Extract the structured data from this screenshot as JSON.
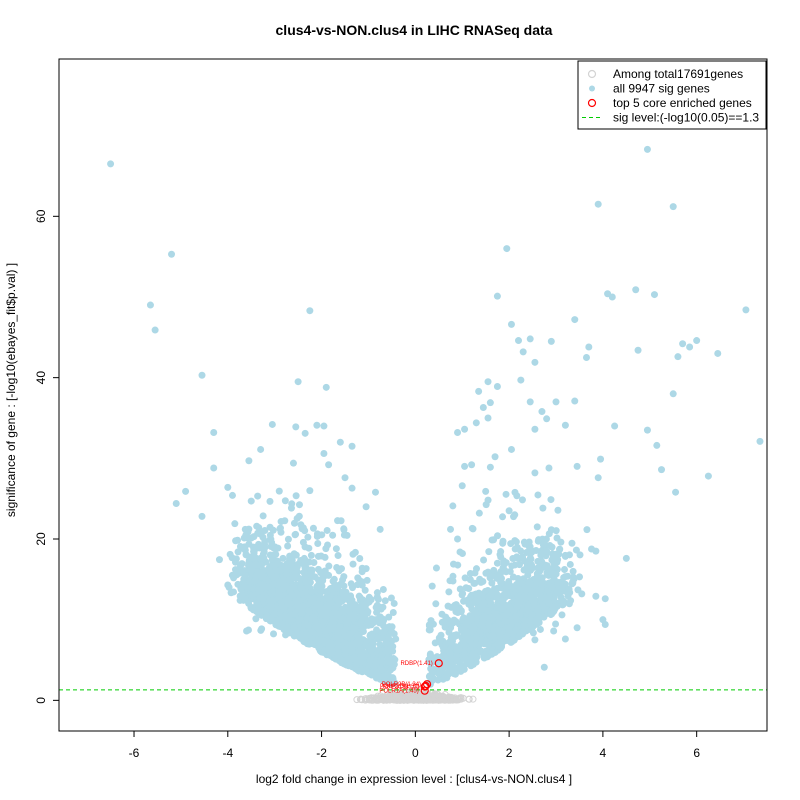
{
  "chart_data": {
    "type": "scatter",
    "title": "clus4-vs-NON.clus4 in LIHC RNASeq data",
    "xlabel": "log2 fold change in expression level : [clus4-vs-NON.clus4 ]",
    "ylabel": "significance of gene : [-log10(ebayes_fit$p.val) ]",
    "xlim": [
      -7.6,
      7.5
    ],
    "ylim": [
      -3.8,
      79.5
    ],
    "x_ticks": [
      -6,
      -4,
      -2,
      0,
      2,
      4,
      6
    ],
    "y_ticks": [
      0,
      20,
      40,
      60
    ],
    "grid": false,
    "legend_position": "top-right",
    "legend": [
      {
        "label": "Among total17691genes",
        "marker": "open-circle",
        "color": "#d3d3d3"
      },
      {
        "label": "all 9947 sig genes",
        "marker": "filled-circle",
        "color": "#add8e6"
      },
      {
        "label": "top 5 core enriched genes",
        "marker": "open-circle",
        "color": "#ff0000"
      },
      {
        "label": "sig level:(-log10(0.05)==1.3",
        "marker": "dashed-line",
        "color": "#00cc00"
      }
    ],
    "sig_level": 1.3,
    "series": [
      {
        "name": "all 9947 sig genes",
        "color": "#add8e6",
        "points": [
          [
            -6.5,
            66.5
          ],
          [
            -5.2,
            55.3
          ],
          [
            -5.65,
            49.0
          ],
          [
            -5.55,
            45.9
          ],
          [
            -2.25,
            48.3
          ],
          [
            -4.55,
            40.3
          ],
          [
            -2.5,
            39.5
          ],
          [
            -1.9,
            38.8
          ],
          [
            -4.3,
            33.2
          ],
          [
            -4.3,
            28.8
          ],
          [
            -4.0,
            26.4
          ],
          [
            -4.9,
            25.9
          ],
          [
            -5.1,
            24.4
          ],
          [
            -4.55,
            22.8
          ],
          [
            -3.05,
            34.2
          ],
          [
            -2.55,
            33.9
          ],
          [
            -2.35,
            33.1
          ],
          [
            -2.1,
            34.1
          ],
          [
            -1.95,
            34.0
          ],
          [
            -1.6,
            32.0
          ],
          [
            -1.35,
            31.5
          ],
          [
            -3.3,
            31.1
          ],
          [
            -3.55,
            29.7
          ],
          [
            -2.6,
            29.4
          ],
          [
            -1.85,
            29.2
          ],
          [
            -1.5,
            27.6
          ],
          [
            -0.85,
            25.8
          ],
          [
            -3.9,
            25.4
          ],
          [
            -3.5,
            24.7
          ],
          [
            -3.85,
            21.9
          ],
          [
            -3.95,
            18.1
          ],
          [
            -4.0,
            14.3
          ],
          [
            -3.6,
            8.6
          ],
          [
            -2.8,
            9.0
          ],
          [
            -3.1,
            12.3
          ],
          [
            -3.25,
            16.0
          ],
          [
            -1.35,
            26.3
          ],
          [
            -1.05,
            24.0
          ],
          [
            -0.75,
            21.2
          ],
          [
            -1.95,
            30.6
          ],
          [
            4.95,
            68.3
          ],
          [
            3.9,
            61.5
          ],
          [
            5.5,
            61.2
          ],
          [
            1.95,
            56.0
          ],
          [
            1.75,
            50.1
          ],
          [
            4.1,
            50.4
          ],
          [
            4.2,
            50.0
          ],
          [
            4.7,
            50.9
          ],
          [
            5.1,
            50.3
          ],
          [
            7.05,
            48.4
          ],
          [
            3.4,
            47.2
          ],
          [
            2.05,
            46.6
          ],
          [
            2.2,
            44.6
          ],
          [
            2.45,
            44.8
          ],
          [
            2.3,
            43.2
          ],
          [
            2.55,
            41.9
          ],
          [
            2.9,
            44.5
          ],
          [
            3.7,
            43.8
          ],
          [
            3.65,
            42.5
          ],
          [
            4.75,
            43.4
          ],
          [
            5.6,
            42.6
          ],
          [
            5.7,
            44.2
          ],
          [
            5.85,
            43.8
          ],
          [
            6.0,
            44.6
          ],
          [
            6.45,
            43.0
          ],
          [
            2.25,
            39.7
          ],
          [
            1.35,
            38.3
          ],
          [
            1.55,
            39.5
          ],
          [
            1.75,
            38.9
          ],
          [
            5.5,
            38.0
          ],
          [
            1.45,
            36.3
          ],
          [
            1.6,
            36.9
          ],
          [
            1.3,
            34.4
          ],
          [
            1.55,
            35.0
          ],
          [
            2.45,
            37.0
          ],
          [
            2.7,
            35.8
          ],
          [
            3.0,
            37.0
          ],
          [
            3.4,
            37.1
          ],
          [
            2.8,
            34.9
          ],
          [
            2.55,
            33.6
          ],
          [
            3.2,
            34.1
          ],
          [
            4.25,
            34.0
          ],
          [
            4.95,
            33.5
          ],
          [
            1.05,
            33.6
          ],
          [
            0.9,
            33.2
          ],
          [
            1.05,
            29.0
          ],
          [
            1.2,
            29.2
          ],
          [
            1.6,
            28.9
          ],
          [
            2.55,
            28.2
          ],
          [
            2.85,
            28.8
          ],
          [
            3.45,
            29.0
          ],
          [
            3.95,
            29.9
          ],
          [
            3.9,
            27.6
          ],
          [
            5.15,
            31.6
          ],
          [
            5.25,
            28.6
          ],
          [
            6.25,
            27.8
          ],
          [
            7.35,
            32.1
          ],
          [
            5.55,
            25.8
          ],
          [
            4.5,
            17.6
          ],
          [
            3.85,
            12.9
          ],
          [
            4.05,
            12.6
          ],
          [
            4.0,
            10.0
          ],
          [
            4.05,
            9.4
          ],
          [
            3.45,
            9.0
          ],
          [
            3.2,
            7.6
          ],
          [
            2.95,
            8.6
          ],
          [
            2.35,
            9.9
          ],
          [
            2.55,
            7.5
          ],
          [
            2.75,
            4.1
          ],
          [
            3.55,
            13.2
          ],
          [
            3.85,
            18.5
          ],
          [
            2.45,
            18.8
          ],
          [
            2.6,
            21.5
          ],
          [
            1.5,
            25.9
          ],
          [
            1.0,
            26.6
          ],
          [
            0.8,
            24.1
          ],
          [
            0.75,
            21.2
          ],
          [
            0.9,
            20.0
          ],
          [
            2.0,
            23.5
          ],
          [
            2.45,
            16.4
          ],
          [
            1.75,
            17.0
          ],
          [
            1.25,
            14.5
          ],
          [
            0.45,
            16.4
          ],
          [
            1.7,
            30.2
          ],
          [
            2.05,
            31.1
          ]
        ],
        "cluster_left": {
          "x_range": [
            -3.4,
            -0.2
          ],
          "y_range": [
            1.3,
            22
          ]
        },
        "cluster_right": {
          "x_range": [
            0.2,
            3.0
          ],
          "y_range": [
            1.3,
            22
          ]
        }
      },
      {
        "name": "Among total17691genes",
        "color": "#d3d3d3",
        "x_range": [
          -1.5,
          1.5
        ],
        "y_range": [
          0,
          1.3
        ]
      },
      {
        "name": "top 5 core enriched genes",
        "color": "#ff0000",
        "points": [
          {
            "x": 0.5,
            "y": 4.6,
            "label": "RDBP(1.41)"
          },
          {
            "x": 0.25,
            "y": 2.0,
            "label": "POLR2B(1.34)"
          },
          {
            "x": 0.22,
            "y": 1.8,
            "label": "POLR2D(1.31)"
          },
          {
            "x": 0.2,
            "y": 1.7,
            "label": "PPP2CB(1.2)"
          },
          {
            "x": 0.2,
            "y": 1.2,
            "label": "POLR1A(1.45)"
          }
        ]
      }
    ]
  }
}
